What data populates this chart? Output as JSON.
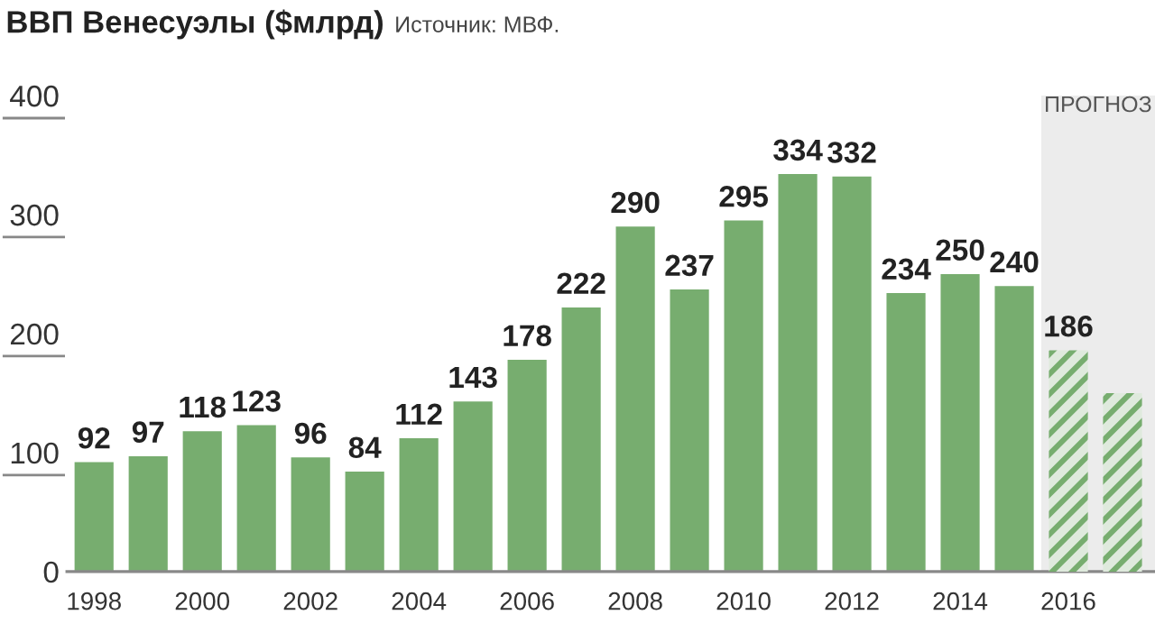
{
  "chart_data": {
    "type": "bar",
    "title": "ВВП Венесуэлы ($млрд)",
    "annotations": [
      "Источник: МВФ."
    ],
    "x": [
      1998,
      1999,
      2000,
      2001,
      2002,
      2003,
      2004,
      2005,
      2006,
      2007,
      2008,
      2009,
      2010,
      2011,
      2012,
      2013,
      2014,
      2015,
      2016,
      2017
    ],
    "values": [
      92,
      97,
      118,
      123,
      96,
      84,
      112,
      143,
      178,
      222,
      290,
      237,
      295,
      334,
      332,
      234,
      250,
      240,
      186,
      150
    ],
    "value_labels": [
      "92",
      "97",
      "118",
      "123",
      "96",
      "84",
      "112",
      "143",
      "178",
      "222",
      "290",
      "237",
      "295",
      "334",
      "332",
      "234",
      "250",
      "240",
      "186",
      null
    ],
    "color": "#77ad6f",
    "xlim": [
      1997.5,
      2017.6
    ],
    "xticks": [
      1998,
      2000,
      2002,
      2004,
      2006,
      2008,
      2010,
      2012,
      2014,
      2016
    ],
    "ylim": [
      0,
      400
    ],
    "yticks": [
      0,
      100,
      200,
      300,
      400
    ],
    "bands": [
      {
        "axis": "x",
        "from": 2015.5,
        "to": 2017.6,
        "label": "ПРОГНОЗ",
        "color": "#ececec"
      }
    ],
    "grid": false,
    "legend": false
  }
}
